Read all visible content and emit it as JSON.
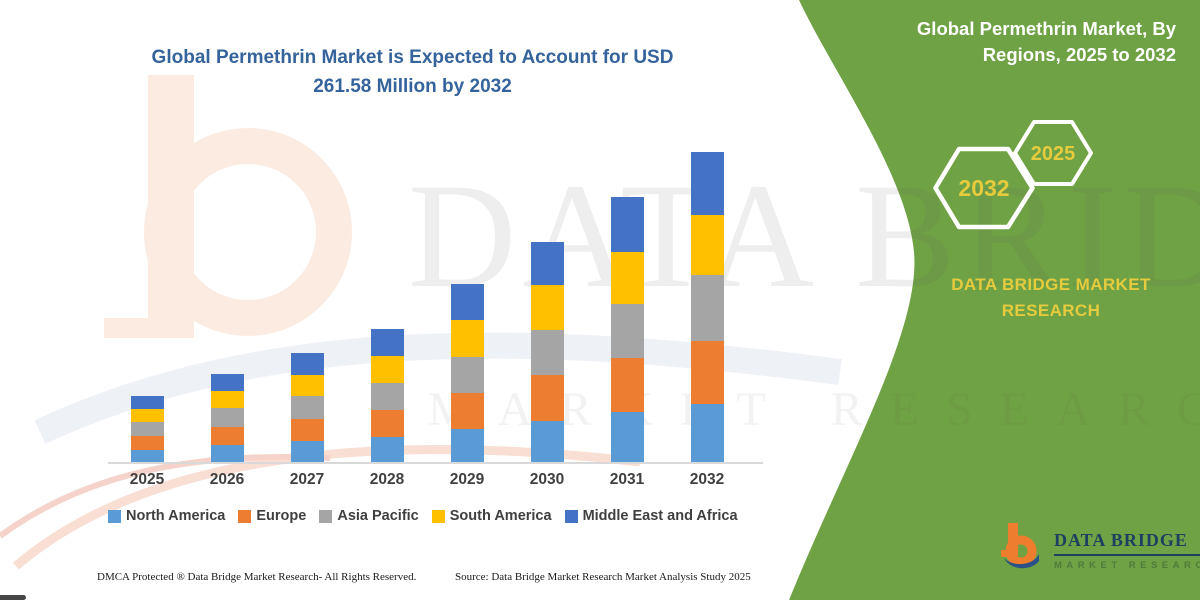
{
  "header": {
    "chart_title": "Global Permethrin Market is Expected to Account for USD 261.58 Million by 2032"
  },
  "side_panel": {
    "title": "Global Permethrin Market, By Regions, 2025 to 2032",
    "hexagons": [
      {
        "label": "2032"
      },
      {
        "label": "2025"
      }
    ],
    "brand": "DATA BRIDGE MARKET RESEARCH",
    "colors": {
      "panel_green": "#6FA244",
      "accent_yellow": "#E5CB3E",
      "hex_border": "#ffffff"
    }
  },
  "chart_data": {
    "type": "bar",
    "stacked": true,
    "title": "Global Permethrin Market is Expected to Account for USD 261.58 Million by 2032",
    "unit": "USD Million",
    "categories": [
      "2025",
      "2026",
      "2027",
      "2028",
      "2029",
      "2030",
      "2031",
      "2032"
    ],
    "series": [
      {
        "name": "North America",
        "color": "#5B9BD5",
        "values": [
          10.5,
          14.0,
          17.5,
          21.0,
          28.0,
          35.0,
          42.5,
          48.5
        ]
      },
      {
        "name": "Europe",
        "color": "#ED7D31",
        "values": [
          11.5,
          15.5,
          19.0,
          22.5,
          30.5,
          38.0,
          45.5,
          53.5
        ]
      },
      {
        "name": "Asia Pacific",
        "color": "#A5A5A5",
        "values": [
          12.0,
          16.0,
          19.5,
          23.5,
          30.5,
          38.0,
          45.0,
          55.5
        ]
      },
      {
        "name": "South America",
        "color": "#FFC000",
        "values": [
          10.5,
          14.0,
          17.5,
          22.5,
          31.0,
          38.5,
          44.5,
          50.5
        ]
      },
      {
        "name": "Middle East and Africa",
        "color": "#4472C4",
        "values": [
          11.5,
          14.5,
          18.5,
          22.5,
          30.0,
          36.0,
          46.5,
          53.58
        ]
      }
    ],
    "estimated_totals": [
      56.0,
      74.0,
      92.0,
      112.0,
      150.0,
      185.5,
      224.0,
      261.58
    ],
    "ylim": [
      0,
      261.58
    ],
    "grid": false,
    "legend_position": "bottom",
    "title_color": "#35639C",
    "axis_color": "#D9D9D9"
  },
  "watermark": {
    "line1": "DATA BRIDGE",
    "line2": "MARKET RESEARCH"
  },
  "logo": {
    "name": "DATA BRIDGE",
    "subtitle": "MARKET RESEARCH"
  },
  "footer": {
    "left": "DMCA Protected ® Data Bridge Market Research-  All Rights Reserved.",
    "source": "Source: Data Bridge Market Research  Market Analysis Study 2025"
  }
}
